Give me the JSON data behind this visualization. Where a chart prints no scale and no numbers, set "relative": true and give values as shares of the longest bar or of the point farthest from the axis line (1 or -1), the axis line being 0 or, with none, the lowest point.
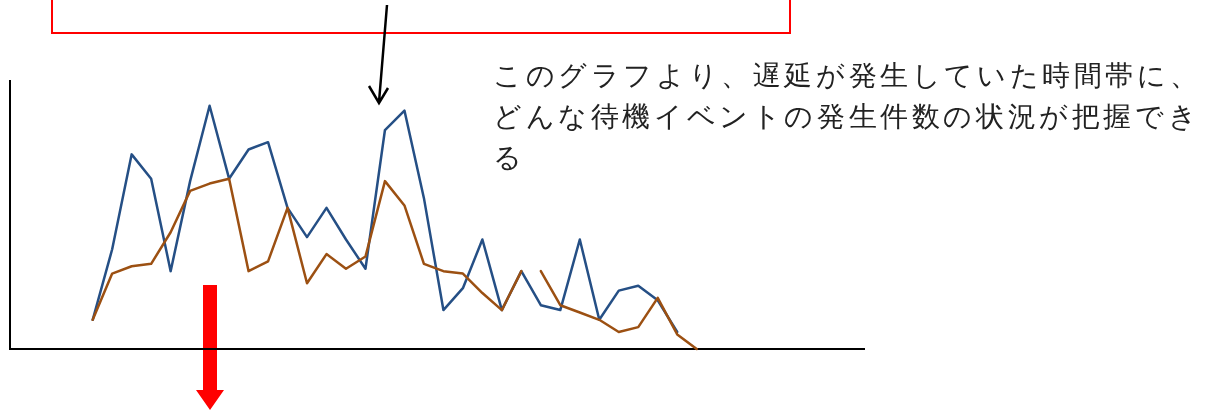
{
  "chart_data": {
    "type": "line",
    "relative": true,
    "marker": "none",
    "line_style": "solid",
    "categories": [
      null,
      null,
      null,
      null,
      null,
      null,
      null,
      null,
      null,
      null,
      null,
      null,
      null,
      null,
      null,
      null,
      null,
      null,
      null,
      null,
      null,
      null,
      null,
      null,
      null,
      null,
      null,
      null,
      null,
      null,
      null,
      null
    ],
    "series": [
      {
        "color": "#254f85",
        "values": [
          0.12,
          0.41,
          0.8,
          0.7,
          0.32,
          0.69,
          1.0,
          0.7,
          0.82,
          0.85,
          0.58,
          0.46,
          0.58,
          0.45,
          0.33,
          0.9,
          0.98,
          0.62,
          0.16,
          0.25,
          0.45,
          0.16,
          0.32,
          0.18,
          0.16,
          0.45,
          0.12,
          0.24,
          0.26,
          0.2,
          0.07,
          null
        ]
      },
      {
        "color": "#9c5012",
        "values": [
          0.12,
          0.31,
          0.34,
          0.35,
          0.48,
          0.65,
          0.68,
          0.7,
          0.32,
          0.36,
          0.58,
          0.27,
          0.39,
          0.33,
          0.38,
          0.69,
          0.59,
          0.35,
          0.32,
          0.31,
          0.23,
          0.16,
          0.32,
          null,
          null,
          null,
          null,
          null,
          null,
          null,
          null,
          null
        ]
      },
      {
        "color": "#9c5012",
        "values": [
          null,
          null,
          null,
          null,
          null,
          null,
          null,
          null,
          null,
          null,
          null,
          null,
          null,
          null,
          null,
          null,
          null,
          null,
          null,
          null,
          null,
          null,
          null,
          0.32,
          0.18,
          0.15,
          0.12,
          0.07,
          0.09,
          0.21,
          0.06,
          0.0
        ]
      }
    ],
    "annotations": [
      "このグラフより、遅延が発生していた時間帯に、どんな待機イベントの発生件数の状況が把握できる"
    ]
  }
}
